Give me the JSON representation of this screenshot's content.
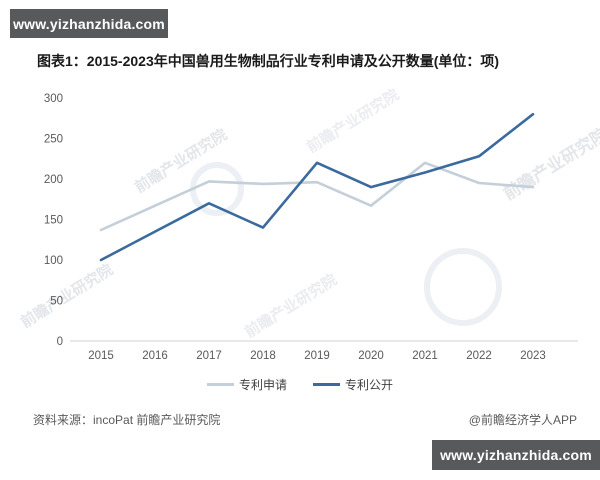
{
  "badges": {
    "top": "www.yizhanzhida.com",
    "bottom": "www.yizhanzhida.com"
  },
  "title": "图表1：2015-2023年中国兽用生物制品行业专利申请及公开数量(单位：项)",
  "chart_data": {
    "type": "line",
    "title": "图表1：2015-2023年中国兽用生物制品行业专利申请及公开数量(单位：项)",
    "categories": [
      "2015",
      "2016",
      "2017",
      "2018",
      "2019",
      "2020",
      "2021",
      "2022",
      "2023"
    ],
    "series": [
      {
        "name": "专利申请",
        "color": "#c4cfda",
        "values": [
          137,
          167,
          197,
          194,
          196,
          167,
          220,
          195,
          190
        ]
      },
      {
        "name": "专利公开",
        "color": "#3a6a9e",
        "values": [
          100,
          135,
          170,
          140,
          220,
          190,
          208,
          228,
          280
        ]
      }
    ],
    "xlabel": "",
    "ylabel": "",
    "ylim": [
      0,
      300
    ],
    "ytick_step": 50,
    "grid": false,
    "legend_position": "bottom"
  },
  "footer": {
    "source": "资料来源：incoPat 前瞻产业研究院",
    "credit": "@前瞻经济学人APP"
  },
  "watermark_text": "前瞻产业研究院"
}
